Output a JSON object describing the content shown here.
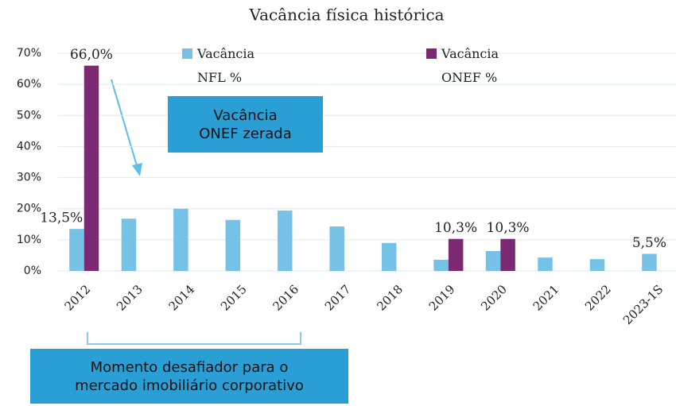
{
  "chart_data": {
    "type": "bar",
    "title": "Vacância física histórica",
    "categories": [
      "2012",
      "2013",
      "2014",
      "2015",
      "2016",
      "2017",
      "2018",
      "2019",
      "2020",
      "2021",
      "2022",
      "2023-1S"
    ],
    "series": [
      {
        "name": "Vacância NFL %",
        "color": "#75c2e6",
        "values": [
          13.5,
          16.8,
          20.0,
          16.4,
          19.4,
          14.3,
          9.0,
          3.6,
          6.4,
          4.3,
          3.8,
          5.5
        ],
        "value_labels": [
          "13,5%",
          null,
          null,
          null,
          null,
          null,
          null,
          null,
          null,
          null,
          null,
          "5,5%"
        ]
      },
      {
        "name": "Vacância ONEF %",
        "color": "#7b2a72",
        "values": [
          66.0,
          null,
          null,
          null,
          null,
          null,
          null,
          10.3,
          10.3,
          null,
          null,
          null
        ],
        "value_labels": [
          "66,0%",
          null,
          null,
          null,
          null,
          null,
          null,
          "10,3%",
          "10,3%",
          null,
          null,
          null
        ]
      }
    ],
    "ylim": [
      0,
      70
    ],
    "yticks": [
      {
        "value": 0,
        "label": "0%"
      },
      {
        "value": 10,
        "label": "10%"
      },
      {
        "value": 20,
        "label": "20%"
      },
      {
        "value": 30,
        "label": "30%"
      },
      {
        "value": 40,
        "label": "40%"
      },
      {
        "value": 50,
        "label": "50%"
      },
      {
        "value": 60,
        "label": "60%"
      },
      {
        "value": 70,
        "label": "70%"
      }
    ],
    "grid": true,
    "annotations": [
      "Vacância ONEF zerada",
      "Momento desafiador para o mercado imobiliário corporativo"
    ]
  }
}
